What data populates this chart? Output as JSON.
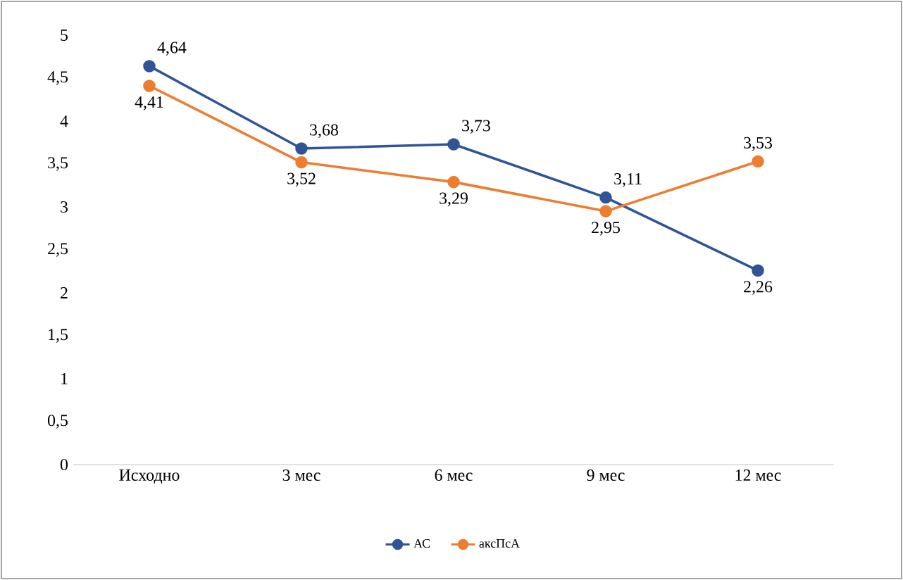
{
  "chart_data": {
    "type": "line",
    "categories": [
      "Исходно",
      "3 мес",
      "6 мес",
      "9 мес",
      "12 мес"
    ],
    "series": [
      {
        "name": "АС",
        "color": "#2f5597",
        "values": [
          4.64,
          3.68,
          3.73,
          3.11,
          2.26
        ],
        "value_labels": [
          "4,64",
          "3,68",
          "3,73",
          "3,11",
          "2,26"
        ]
      },
      {
        "name": "аксПсА",
        "color": "#ed7d31",
        "values": [
          4.41,
          3.52,
          3.29,
          2.95,
          3.53
        ],
        "value_labels": [
          "4,41",
          "3,52",
          "3,29",
          "2,95",
          "3,53"
        ]
      }
    ],
    "ylim": [
      0,
      5
    ],
    "yticks": [
      0,
      {
        "value": 0.5,
        "label": "0,5"
      },
      1,
      {
        "value": 1.5,
        "label": "1,5"
      },
      2,
      {
        "value": 2.5,
        "label": "2,5"
      },
      3,
      {
        "value": 3.5,
        "label": "3,5"
      },
      4,
      {
        "value": 4.5,
        "label": "4,5"
      },
      5
    ],
    "legend": "bottom",
    "marker": "circle",
    "line_style": "solid"
  }
}
